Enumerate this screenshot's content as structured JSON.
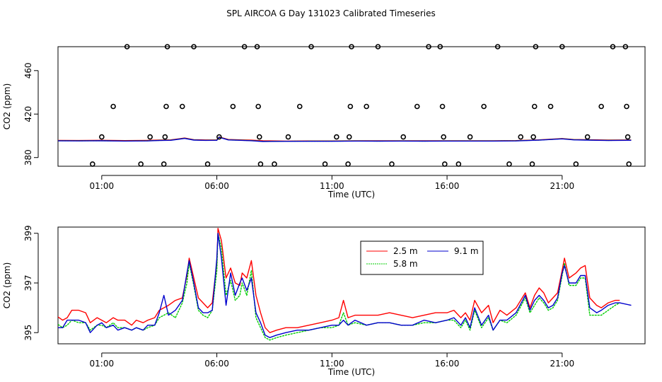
{
  "figure": {
    "title": "SPL AIRCOA G  Day 131023  Calibrated Timeseries"
  },
  "chart_data": [
    {
      "type": "scatter",
      "panel": "top",
      "xlabel": "Time (UTC)",
      "ylabel": "CO2 (ppm)",
      "xlim": [
        -0.9,
        24.6
      ],
      "ylim": [
        370,
        480
      ],
      "x_ticks": [
        1,
        6,
        11,
        16,
        21
      ],
      "x_tick_labels": [
        "01:00",
        "06:00",
        "11:00",
        "16:00",
        "21:00"
      ],
      "y_ticks": [
        380,
        420,
        460
      ],
      "y_tick_labels": [
        "380",
        "420",
        "460"
      ],
      "marker": "open-circle",
      "points": [
        [
          0.6,
          374
        ],
        [
          1.0,
          399
        ],
        [
          1.5,
          427
        ],
        [
          2.1,
          482
        ],
        [
          2.7,
          374
        ],
        [
          3.1,
          399
        ],
        [
          3.7,
          374
        ],
        [
          3.75,
          399
        ],
        [
          3.8,
          427
        ],
        [
          3.85,
          482
        ],
        [
          4.5,
          427
        ],
        [
          5.0,
          482
        ],
        [
          5.6,
          374
        ],
        [
          6.1,
          399
        ],
        [
          6.7,
          427
        ],
        [
          7.2,
          482
        ],
        [
          7.75,
          482
        ],
        [
          7.8,
          427
        ],
        [
          7.85,
          399
        ],
        [
          7.9,
          374
        ],
        [
          8.5,
          374
        ],
        [
          9.1,
          399
        ],
        [
          9.6,
          427
        ],
        [
          10.1,
          482
        ],
        [
          10.7,
          374
        ],
        [
          11.2,
          399
        ],
        [
          11.7,
          374
        ],
        [
          11.75,
          399
        ],
        [
          11.8,
          427
        ],
        [
          11.85,
          482
        ],
        [
          12.5,
          427
        ],
        [
          13.0,
          482
        ],
        [
          13.6,
          374
        ],
        [
          14.1,
          399
        ],
        [
          14.7,
          427
        ],
        [
          15.2,
          482
        ],
        [
          15.7,
          482
        ],
        [
          15.8,
          427
        ],
        [
          15.85,
          399
        ],
        [
          15.9,
          374
        ],
        [
          16.5,
          374
        ],
        [
          17.0,
          399
        ],
        [
          17.6,
          427
        ],
        [
          18.2,
          482
        ],
        [
          18.7,
          374
        ],
        [
          19.2,
          399
        ],
        [
          19.7,
          374
        ],
        [
          19.75,
          399
        ],
        [
          19.8,
          427
        ],
        [
          19.85,
          482
        ],
        [
          20.5,
          427
        ],
        [
          21.0,
          482
        ],
        [
          21.6,
          374
        ],
        [
          22.1,
          399
        ],
        [
          22.7,
          427
        ],
        [
          23.2,
          482
        ],
        [
          23.75,
          482
        ],
        [
          23.8,
          427
        ],
        [
          23.85,
          399
        ],
        [
          23.9,
          374
        ]
      ],
      "series": [
        {
          "name": "2.5 m",
          "color": "#ff0000",
          "x": [
            -1,
            0,
            1,
            2,
            3,
            3.5,
            4,
            4.6,
            5,
            5.5,
            6,
            6.1,
            6.5,
            7,
            7.5,
            8,
            9,
            10,
            11,
            12,
            13,
            14,
            15,
            16,
            17,
            18,
            19,
            20,
            21,
            21.5,
            22,
            23,
            24
          ],
          "y": [
            395.8,
            395.7,
            395.9,
            395.6,
            395.8,
            396.1,
            396.3,
            398.0,
            396.5,
            396.2,
            396.3,
            399.0,
            396.6,
            396.3,
            396.0,
            395.4,
            395.2,
            395.3,
            395.3,
            395.4,
            395.4,
            395.4,
            395.4,
            395.5,
            395.5,
            395.5,
            395.6,
            396.3,
            397.5,
            396.6,
            396.5,
            396.1,
            396.2
          ]
        },
        {
          "name": "5.8 m",
          "color": "#00cd00",
          "x": [
            -1,
            0,
            1,
            2,
            3,
            3.5,
            4,
            4.6,
            5,
            5.5,
            6,
            6.1,
            6.5,
            7,
            7.5,
            8,
            9,
            10,
            11,
            12,
            13,
            14,
            15,
            16,
            17,
            18,
            19,
            20,
            21,
            21.5,
            22,
            23,
            24
          ],
          "y": [
            395.5,
            395.4,
            395.5,
            395.3,
            395.4,
            395.8,
            396.0,
            397.7,
            396.2,
            395.9,
            396.0,
            398.8,
            396.3,
            396.0,
            395.6,
            394.9,
            395.0,
            395.1,
            395.1,
            395.3,
            395.2,
            395.3,
            395.2,
            395.3,
            395.3,
            395.3,
            395.4,
            396.1,
            397.3,
            396.4,
            396.2,
            395.8,
            396.0
          ]
        },
        {
          "name": "9.1 m",
          "color": "#0000cd",
          "x": [
            -1,
            0,
            1,
            2,
            3,
            3.5,
            4,
            4.6,
            5,
            5.5,
            6,
            6.1,
            6.5,
            7,
            7.5,
            8,
            9,
            10,
            11,
            12,
            13,
            14,
            15,
            16,
            17,
            18,
            19,
            20,
            21,
            21.5,
            22,
            23,
            24
          ],
          "y": [
            395.4,
            395.3,
            395.4,
            395.2,
            395.3,
            395.7,
            395.9,
            397.6,
            396.1,
            395.8,
            395.9,
            398.6,
            396.2,
            395.9,
            395.5,
            394.8,
            394.9,
            395.0,
            395.0,
            395.2,
            395.1,
            395.2,
            395.1,
            395.2,
            395.2,
            395.2,
            395.3,
            396.0,
            397.2,
            396.3,
            396.1,
            395.7,
            395.9
          ]
        }
      ]
    },
    {
      "type": "line",
      "panel": "bottom",
      "xlabel": "Time (UTC)",
      "ylabel": "CO2 (ppm)",
      "xlim": [
        -0.9,
        24.6
      ],
      "ylim": [
        394.5,
        399.3
      ],
      "x_ticks": [
        1,
        6,
        11,
        16,
        21
      ],
      "x_tick_labels": [
        "01:00",
        "06:00",
        "11:00",
        "16:00",
        "21:00"
      ],
      "y_ticks": [
        395,
        397,
        399
      ],
      "y_tick_labels": [
        "395",
        "397",
        "399"
      ],
      "legend": {
        "position": "top-right-center",
        "entries": [
          "2.5 m",
          "9.1 m",
          "5.8 m"
        ]
      },
      "series": [
        {
          "name": "2.5 m",
          "color": "#ff0000",
          "x": [
            -1,
            -0.7,
            -0.5,
            -0.3,
            0,
            0.3,
            0.5,
            0.8,
            1.0,
            1.2,
            1.5,
            1.7,
            2.0,
            2.3,
            2.5,
            2.8,
            3.0,
            3.3,
            3.5,
            3.7,
            3.9,
            4.2,
            4.5,
            4.7,
            4.8,
            5.0,
            5.2,
            5.4,
            5.6,
            5.8,
            6.0,
            6.05,
            6.2,
            6.4,
            6.6,
            6.8,
            7.0,
            7.1,
            7.3,
            7.5,
            7.7,
            7.9,
            8.1,
            8.3,
            8.6,
            9.0,
            9.5,
            10,
            10.5,
            11,
            11.3,
            11.5,
            11.7,
            12,
            12.5,
            13,
            13.5,
            14,
            14.5,
            15,
            15.5,
            16,
            16.3,
            16.6,
            16.8,
            17,
            17.2,
            17.5,
            17.8,
            18.0,
            18.3,
            18.6,
            19,
            19.4,
            19.6,
            19.8,
            20,
            20.2,
            20.4,
            20.6,
            20.8,
            21.0,
            21.1,
            21.3,
            21.6,
            21.8,
            22.0,
            22.2,
            22.5,
            22.7,
            23.0,
            23.3,
            23.5
          ],
          "y": [
            395.7,
            395.5,
            395.6,
            395.9,
            395.9,
            395.8,
            395.4,
            395.6,
            395.5,
            395.4,
            395.6,
            395.5,
            395.5,
            395.3,
            395.5,
            395.4,
            395.5,
            395.6,
            395.9,
            396.0,
            396.1,
            396.3,
            396.4,
            397.3,
            398.0,
            397.2,
            396.4,
            396.2,
            396.0,
            396.2,
            397.8,
            399.2,
            398.7,
            397.2,
            397.6,
            397.0,
            396.9,
            397.4,
            397.2,
            397.9,
            396.5,
            395.8,
            395.2,
            395.0,
            395.1,
            395.2,
            395.2,
            395.3,
            395.4,
            395.5,
            395.6,
            396.3,
            395.6,
            395.7,
            395.7,
            395.7,
            395.8,
            395.7,
            395.6,
            395.7,
            395.8,
            395.8,
            395.9,
            395.6,
            395.8,
            395.5,
            396.3,
            395.8,
            396.1,
            395.4,
            395.9,
            395.7,
            396.0,
            396.6,
            396.0,
            396.5,
            396.8,
            396.6,
            396.2,
            396.4,
            396.6,
            397.5,
            398.0,
            397.2,
            397.4,
            397.6,
            397.7,
            396.4,
            396.1,
            396.0,
            396.2,
            396.3,
            396.3
          ]
        },
        {
          "name": "5.8 m",
          "color": "#00cd00",
          "x": [
            -1,
            -0.7,
            -0.5,
            -0.3,
            0,
            0.3,
            0.5,
            0.8,
            1.0,
            1.2,
            1.5,
            1.7,
            2.0,
            2.3,
            2.5,
            2.8,
            3.0,
            3.3,
            3.5,
            3.7,
            3.9,
            4.2,
            4.5,
            4.7,
            4.8,
            5.0,
            5.2,
            5.4,
            5.6,
            5.8,
            6.0,
            6.05,
            6.2,
            6.4,
            6.6,
            6.8,
            7.0,
            7.1,
            7.3,
            7.5,
            7.7,
            7.9,
            8.1,
            8.3,
            8.6,
            9.0,
            9.5,
            10,
            10.5,
            11,
            11.3,
            11.5,
            11.7,
            12,
            12.5,
            13,
            13.5,
            14,
            14.5,
            15,
            15.5,
            16,
            16.3,
            16.6,
            16.8,
            17,
            17.2,
            17.5,
            17.8,
            18.0,
            18.3,
            18.6,
            19,
            19.4,
            19.6,
            19.8,
            20,
            20.2,
            20.4,
            20.6,
            20.8,
            21.0,
            21.1,
            21.3,
            21.6,
            21.8,
            22.0,
            22.2,
            22.5,
            22.7,
            23.0,
            23.3,
            23.5
          ],
          "y": [
            395.4,
            395.2,
            395.3,
            395.5,
            395.4,
            395.4,
            395.1,
            395.3,
            395.3,
            395.2,
            395.4,
            395.2,
            395.2,
            395.1,
            395.2,
            395.1,
            395.2,
            395.3,
            395.6,
            395.7,
            395.8,
            395.6,
            396.2,
            397.0,
            397.8,
            396.9,
            395.9,
            395.7,
            395.6,
            395.9,
            397.5,
            399.0,
            398.4,
            396.5,
            397.1,
            396.3,
            396.5,
            397.0,
            396.5,
            397.5,
            395.6,
            395.2,
            394.8,
            394.7,
            394.8,
            394.9,
            395.0,
            395.1,
            395.2,
            395.2,
            395.3,
            395.8,
            395.3,
            395.4,
            395.3,
            395.4,
            395.4,
            395.3,
            395.3,
            395.4,
            395.4,
            395.5,
            395.5,
            395.2,
            395.5,
            395.1,
            395.9,
            395.2,
            395.6,
            395.1,
            395.5,
            395.4,
            395.7,
            396.4,
            395.8,
            396.1,
            396.4,
            396.2,
            395.9,
            396.0,
            396.3,
            397.3,
            397.8,
            396.9,
            396.9,
            397.2,
            397.2,
            395.7,
            395.7,
            395.7,
            395.9,
            396.1,
            396.2
          ]
        },
        {
          "name": "9.1 m",
          "color": "#0000cd",
          "x": [
            -1,
            -0.7,
            -0.5,
            -0.3,
            0,
            0.3,
            0.5,
            0.8,
            1.0,
            1.2,
            1.5,
            1.7,
            2.0,
            2.3,
            2.5,
            2.8,
            3.0,
            3.3,
            3.5,
            3.7,
            3.9,
            4.2,
            4.5,
            4.7,
            4.8,
            5.0,
            5.2,
            5.4,
            5.6,
            5.8,
            6.0,
            6.05,
            6.2,
            6.4,
            6.6,
            6.8,
            7.0,
            7.1,
            7.3,
            7.5,
            7.7,
            7.9,
            8.1,
            8.3,
            8.6,
            9.0,
            9.5,
            10,
            10.5,
            11,
            11.3,
            11.5,
            11.7,
            12,
            12.5,
            13,
            13.5,
            14,
            14.5,
            15,
            15.5,
            16,
            16.3,
            16.6,
            16.8,
            17,
            17.2,
            17.5,
            17.8,
            18.0,
            18.3,
            18.6,
            19,
            19.4,
            19.6,
            19.8,
            20,
            20.2,
            20.4,
            20.6,
            20.8,
            21.0,
            21.1,
            21.3,
            21.6,
            21.8,
            22.0,
            22.2,
            22.5,
            22.7,
            23.0,
            23.3,
            23.5,
            24.0
          ],
          "y": [
            395.2,
            395.2,
            395.5,
            395.5,
            395.5,
            395.4,
            395.0,
            395.3,
            395.4,
            395.2,
            395.3,
            395.1,
            395.2,
            395.1,
            395.2,
            395.1,
            395.3,
            395.3,
            395.8,
            396.5,
            395.7,
            395.9,
            396.3,
            397.4,
            397.9,
            397.0,
            396.0,
            395.8,
            395.8,
            395.9,
            398.0,
            399.0,
            398.0,
            396.1,
            397.4,
            396.5,
            397.0,
            397.2,
            396.7,
            397.2,
            395.8,
            395.4,
            394.9,
            394.8,
            394.9,
            395.0,
            395.1,
            395.1,
            395.2,
            395.3,
            395.3,
            395.5,
            395.3,
            395.5,
            395.3,
            395.4,
            395.4,
            395.3,
            395.3,
            395.5,
            395.4,
            395.5,
            395.6,
            395.3,
            395.6,
            395.2,
            396.0,
            395.3,
            395.7,
            395.1,
            395.5,
            395.5,
            395.8,
            396.5,
            395.9,
            396.3,
            396.5,
            396.3,
            396.0,
            396.1,
            396.4,
            397.4,
            397.7,
            397.0,
            397.0,
            397.3,
            397.3,
            396.0,
            395.8,
            395.9,
            396.1,
            396.2,
            396.2,
            396.1
          ]
        }
      ]
    }
  ]
}
